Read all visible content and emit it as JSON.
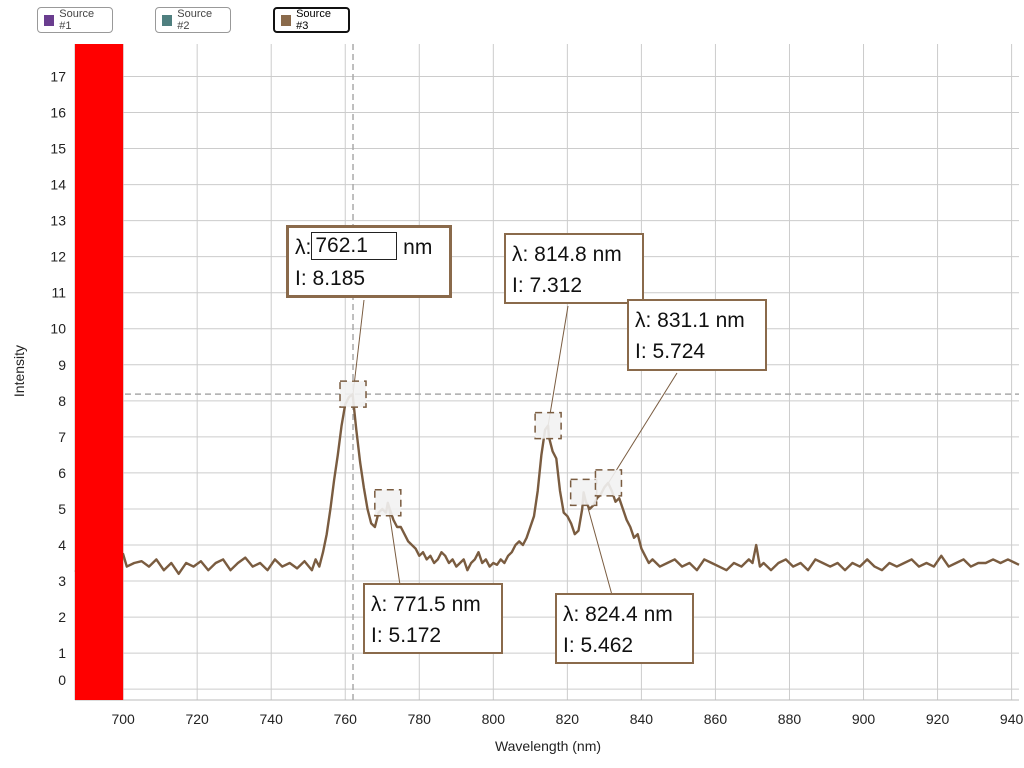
{
  "legend": [
    {
      "label": "Source #1",
      "color": "#6a3d8f",
      "active": false
    },
    {
      "label": "Source #2",
      "color": "#4f7f7f",
      "active": false
    },
    {
      "label": "Source #3",
      "color": "#8a6a4b",
      "active": true
    }
  ],
  "colors": {
    "series": "#7a5c40",
    "highlight": "#ff0000",
    "grid": "#cccccc",
    "crosshair": "#aaaaaa"
  },
  "chart_data": {
    "type": "line",
    "xlabel": "Wavelength (nm)",
    "ylabel": "Intensity",
    "xlim": [
      687,
      942
    ],
    "ylim": [
      -0.3,
      17.9
    ],
    "xticks": [
      700,
      720,
      740,
      760,
      780,
      800,
      820,
      840,
      860,
      880,
      900,
      920,
      940
    ],
    "yticks": [
      0,
      1,
      2,
      3,
      4,
      5,
      6,
      7,
      8,
      9,
      10,
      11,
      12,
      13,
      14,
      15,
      16,
      17
    ],
    "grid": true,
    "highlight_band": [
      687,
      700
    ],
    "crosshair": {
      "x": 762.1,
      "y": 8.185
    },
    "series": [
      {
        "name": "Source #3",
        "points": [
          [
            687,
            3.3
          ],
          [
            689,
            3.2
          ],
          [
            691,
            3.4
          ],
          [
            693,
            3.35
          ],
          [
            695,
            3.5
          ],
          [
            697,
            3.45
          ],
          [
            699,
            3.6
          ],
          [
            700,
            3.75
          ],
          [
            701,
            3.4
          ],
          [
            703,
            3.5
          ],
          [
            705,
            3.55
          ],
          [
            707,
            3.4
          ],
          [
            709,
            3.6
          ],
          [
            711,
            3.3
          ],
          [
            713,
            3.5
          ],
          [
            715,
            3.2
          ],
          [
            717,
            3.5
          ],
          [
            719,
            3.4
          ],
          [
            721,
            3.55
          ],
          [
            723,
            3.3
          ],
          [
            725,
            3.5
          ],
          [
            727,
            3.6
          ],
          [
            729,
            3.3
          ],
          [
            731,
            3.5
          ],
          [
            733,
            3.65
          ],
          [
            735,
            3.4
          ],
          [
            737,
            3.5
          ],
          [
            739,
            3.3
          ],
          [
            741,
            3.6
          ],
          [
            743,
            3.4
          ],
          [
            745,
            3.5
          ],
          [
            747,
            3.35
          ],
          [
            749,
            3.55
          ],
          [
            751,
            3.3
          ],
          [
            752,
            3.6
          ],
          [
            753,
            3.4
          ],
          [
            754,
            3.8
          ],
          [
            755,
            4.3
          ],
          [
            756,
            5.0
          ],
          [
            757,
            5.8
          ],
          [
            758,
            6.5
          ],
          [
            759,
            7.3
          ],
          [
            760,
            7.9
          ],
          [
            761,
            8.1
          ],
          [
            762,
            8.185
          ],
          [
            763,
            7.2
          ],
          [
            764,
            6.3
          ],
          [
            765,
            5.6
          ],
          [
            766,
            5.0
          ],
          [
            767,
            4.6
          ],
          [
            768,
            4.5
          ],
          [
            769,
            4.9
          ],
          [
            770,
            5.0
          ],
          [
            771,
            4.9
          ],
          [
            771.5,
            5.172
          ],
          [
            772,
            5.0
          ],
          [
            773,
            4.7
          ],
          [
            774,
            4.5
          ],
          [
            775,
            4.5
          ],
          [
            776,
            4.3
          ],
          [
            777,
            4.1
          ],
          [
            778,
            4.0
          ],
          [
            779,
            3.9
          ],
          [
            780,
            3.7
          ],
          [
            781,
            3.8
          ],
          [
            782,
            3.6
          ],
          [
            783,
            3.7
          ],
          [
            784,
            3.5
          ],
          [
            785,
            3.6
          ],
          [
            786,
            3.8
          ],
          [
            787,
            3.7
          ],
          [
            788,
            3.5
          ],
          [
            789,
            3.6
          ],
          [
            790,
            3.4
          ],
          [
            791,
            3.5
          ],
          [
            792,
            3.6
          ],
          [
            793,
            3.3
          ],
          [
            794,
            3.5
          ],
          [
            795,
            3.6
          ],
          [
            796,
            3.8
          ],
          [
            797,
            3.5
          ],
          [
            798,
            3.6
          ],
          [
            799,
            3.4
          ],
          [
            800,
            3.5
          ],
          [
            801,
            3.45
          ],
          [
            802,
            3.6
          ],
          [
            803,
            3.5
          ],
          [
            804,
            3.7
          ],
          [
            805,
            3.8
          ],
          [
            806,
            4.0
          ],
          [
            807,
            4.1
          ],
          [
            808,
            4.0
          ],
          [
            809,
            4.2
          ],
          [
            810,
            4.5
          ],
          [
            811,
            4.8
          ],
          [
            812,
            5.5
          ],
          [
            813,
            6.5
          ],
          [
            814,
            7.2
          ],
          [
            814.8,
            7.312
          ],
          [
            815,
            7.0
          ],
          [
            816,
            6.6
          ],
          [
            817,
            6.4
          ],
          [
            818,
            5.5
          ],
          [
            819,
            4.9
          ],
          [
            820,
            4.8
          ],
          [
            821,
            4.6
          ],
          [
            822,
            4.3
          ],
          [
            823,
            4.4
          ],
          [
            824,
            5.0
          ],
          [
            824.4,
            5.462
          ],
          [
            825,
            5.2
          ],
          [
            826,
            5.0
          ],
          [
            827,
            5.1
          ],
          [
            828,
            5.3
          ],
          [
            829,
            5.4
          ],
          [
            830,
            5.6
          ],
          [
            831,
            5.724
          ],
          [
            832,
            5.5
          ],
          [
            833,
            5.2
          ],
          [
            834,
            5.3
          ],
          [
            835,
            5.0
          ],
          [
            836,
            4.7
          ],
          [
            837,
            4.5
          ],
          [
            838,
            4.2
          ],
          [
            839,
            4.3
          ],
          [
            840,
            3.9
          ],
          [
            841,
            3.7
          ],
          [
            842,
            3.5
          ],
          [
            843,
            3.6
          ],
          [
            845,
            3.4
          ],
          [
            847,
            3.5
          ],
          [
            849,
            3.6
          ],
          [
            851,
            3.4
          ],
          [
            853,
            3.5
          ],
          [
            855,
            3.3
          ],
          [
            857,
            3.6
          ],
          [
            859,
            3.5
          ],
          [
            861,
            3.4
          ],
          [
            863,
            3.3
          ],
          [
            865,
            3.5
          ],
          [
            867,
            3.4
          ],
          [
            869,
            3.6
          ],
          [
            870,
            3.5
          ],
          [
            871,
            4.0
          ],
          [
            872,
            3.4
          ],
          [
            873,
            3.5
          ],
          [
            875,
            3.3
          ],
          [
            877,
            3.5
          ],
          [
            879,
            3.6
          ],
          [
            881,
            3.4
          ],
          [
            883,
            3.5
          ],
          [
            885,
            3.3
          ],
          [
            887,
            3.6
          ],
          [
            889,
            3.5
          ],
          [
            891,
            3.4
          ],
          [
            893,
            3.5
          ],
          [
            895,
            3.3
          ],
          [
            897,
            3.5
          ],
          [
            899,
            3.4
          ],
          [
            901,
            3.6
          ],
          [
            903,
            3.4
          ],
          [
            905,
            3.3
          ],
          [
            907,
            3.5
          ],
          [
            909,
            3.4
          ],
          [
            911,
            3.5
          ],
          [
            913,
            3.6
          ],
          [
            915,
            3.4
          ],
          [
            917,
            3.5
          ],
          [
            919,
            3.4
          ],
          [
            921,
            3.7
          ],
          [
            923,
            3.4
          ],
          [
            925,
            3.5
          ],
          [
            927,
            3.6
          ],
          [
            929,
            3.4
          ],
          [
            931,
            3.5
          ],
          [
            933,
            3.5
          ],
          [
            935,
            3.6
          ],
          [
            937,
            3.5
          ],
          [
            939,
            3.6
          ],
          [
            941,
            3.5
          ],
          [
            942,
            3.45
          ]
        ]
      }
    ],
    "peaks": [
      {
        "lambda": "762.1",
        "intensity": "8.185",
        "x": 762.1,
        "y": 8.185,
        "selected": true
      },
      {
        "lambda": "771.5",
        "intensity": "5.172",
        "x": 771.5,
        "y": 5.172
      },
      {
        "lambda": "814.8",
        "intensity": "7.312",
        "x": 814.8,
        "y": 7.312
      },
      {
        "lambda": "824.4",
        "intensity": "5.462",
        "x": 824.4,
        "y": 5.462
      },
      {
        "lambda": "831.1",
        "intensity": "5.724",
        "x": 831.1,
        "y": 5.724
      }
    ]
  },
  "labels": {
    "lambda_prefix": "λ: ",
    "nm_suffix": " nm",
    "intensity_prefix": "I: "
  }
}
